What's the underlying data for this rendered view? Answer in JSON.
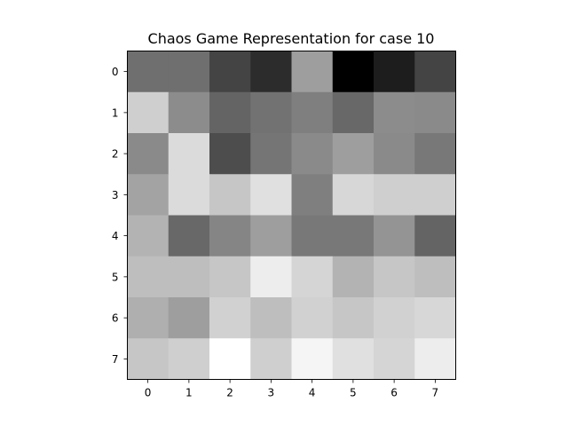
{
  "chart_data": {
    "type": "heatmap",
    "title": "Chaos Game Representation for case 10",
    "colormap": "gray",
    "x_ticks": [
      "0",
      "1",
      "2",
      "3",
      "4",
      "5",
      "6",
      "7"
    ],
    "y_ticks": [
      "0",
      "1",
      "2",
      "3",
      "4",
      "5",
      "6",
      "7"
    ],
    "values": [
      [
        111,
        111,
        68,
        44,
        158,
        0,
        29,
        68
      ],
      [
        207,
        140,
        100,
        114,
        127,
        104,
        140,
        138
      ],
      [
        138,
        219,
        77,
        117,
        138,
        158,
        138,
        120
      ],
      [
        163,
        219,
        198,
        224,
        127,
        215,
        207,
        207
      ],
      [
        179,
        104,
        133,
        158,
        120,
        120,
        148,
        100
      ],
      [
        190,
        190,
        198,
        237,
        213,
        179,
        198,
        190
      ],
      [
        175,
        158,
        209,
        190,
        209,
        198,
        209,
        215
      ],
      [
        198,
        207,
        255,
        207,
        245,
        224,
        213,
        237
      ]
    ],
    "value_range": [
      0,
      255
    ]
  }
}
